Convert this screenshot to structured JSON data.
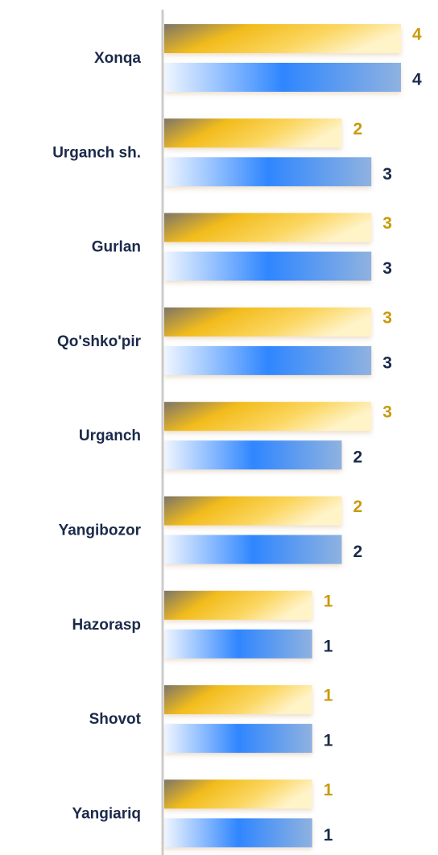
{
  "chart_data": {
    "type": "bar",
    "orientation": "horizontal",
    "categories": [
      "Xonqa",
      "Urganch sh.",
      "Gurlan",
      "Qo'shko'pir",
      "Urganch",
      "Yangibozor",
      "Hazorasp",
      "Shovot",
      "Yangiariq"
    ],
    "series": [
      {
        "color": "#f5c020",
        "values": [
          4,
          2,
          3,
          3,
          3,
          2,
          1,
          1,
          1
        ]
      },
      {
        "color": "#3388ff",
        "values": [
          4,
          3,
          3,
          3,
          2,
          2,
          1,
          1,
          1
        ]
      }
    ],
    "xlim": [
      -4,
      4
    ]
  }
}
